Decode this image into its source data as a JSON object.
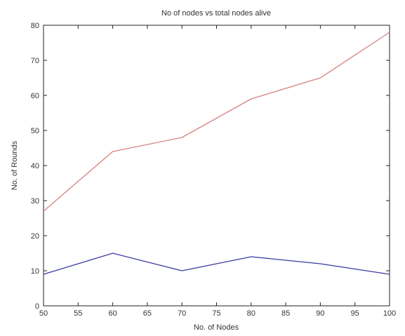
{
  "chart_data": {
    "type": "line",
    "title": "No of nodes vs total nodes alive",
    "xlabel": "No. of Nodes",
    "ylabel": "No. of Rounds",
    "xlim": [
      50,
      100
    ],
    "ylim": [
      0,
      80
    ],
    "x_ticks": [
      50,
      55,
      60,
      65,
      70,
      75,
      80,
      85,
      90,
      95,
      100
    ],
    "y_ticks": [
      0,
      10,
      20,
      30,
      40,
      50,
      60,
      70,
      80
    ],
    "grid": false,
    "x": [
      50,
      60,
      70,
      80,
      90,
      100
    ],
    "series": [
      {
        "color": "#d98080",
        "values": [
          27,
          44,
          48,
          59,
          65,
          78
        ]
      },
      {
        "color": "#3a3aa0",
        "values": [
          9,
          15,
          10,
          14,
          12,
          9
        ]
      }
    ]
  }
}
